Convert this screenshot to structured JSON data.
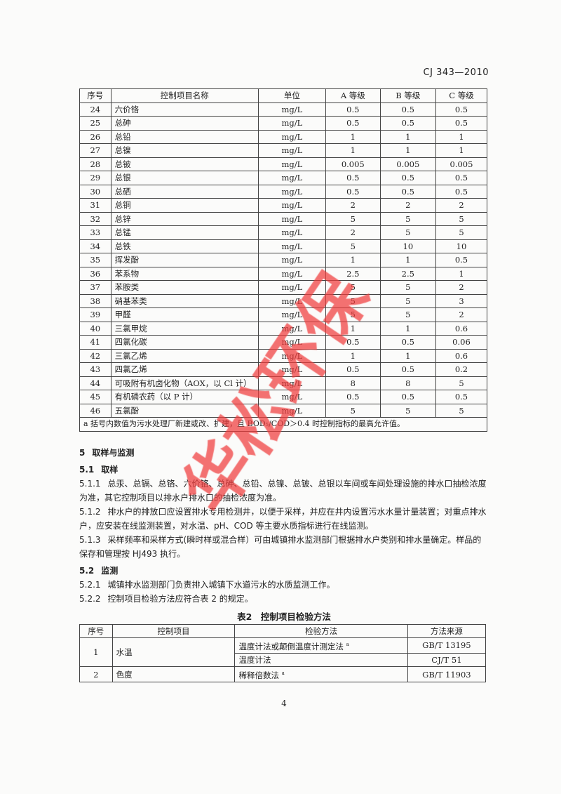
{
  "header": {
    "doc_code": "CJ 343—2010"
  },
  "table1": {
    "columns": [
      "序号",
      "控制项目名称",
      "单位",
      "A 等级",
      "B 等级",
      "C 等级"
    ],
    "rows": [
      [
        "24",
        "六价铬",
        "mg/L",
        "0.5",
        "0.5",
        "0.5"
      ],
      [
        "25",
        "总砷",
        "mg/L",
        "0.5",
        "0.5",
        "0.5"
      ],
      [
        "26",
        "总铅",
        "mg/L",
        "1",
        "1",
        "1"
      ],
      [
        "27",
        "总镍",
        "mg/L",
        "1",
        "1",
        "1"
      ],
      [
        "28",
        "总铍",
        "mg/L",
        "0.005",
        "0.005",
        "0.005"
      ],
      [
        "29",
        "总银",
        "mg/L",
        "0.5",
        "0.5",
        "0.5"
      ],
      [
        "30",
        "总硒",
        "mg/L",
        "0.5",
        "0.5",
        "0.5"
      ],
      [
        "31",
        "总铜",
        "mg/L",
        "2",
        "2",
        "2"
      ],
      [
        "32",
        "总锌",
        "mg/L",
        "5",
        "5",
        "5"
      ],
      [
        "33",
        "总锰",
        "mg/L",
        "2",
        "5",
        "5"
      ],
      [
        "34",
        "总铁",
        "mg/L",
        "5",
        "10",
        "10"
      ],
      [
        "35",
        "挥发酚",
        "mg/L",
        "1",
        "1",
        "0.5"
      ],
      [
        "36",
        "苯系物",
        "mg/L",
        "2.5",
        "2.5",
        "1"
      ],
      [
        "37",
        "苯胺类",
        "mg/L",
        "5",
        "5",
        "2"
      ],
      [
        "38",
        "硝基苯类",
        "mg/L",
        "5",
        "5",
        "3"
      ],
      [
        "39",
        "甲醛",
        "mg/L",
        "5",
        "5",
        "2"
      ],
      [
        "40",
        "三氯甲烷",
        "mg/L",
        "1",
        "1",
        "0.6"
      ],
      [
        "41",
        "四氯化碳",
        "mg/L",
        "0.5",
        "0.5",
        "0.06"
      ],
      [
        "42",
        "三氯乙烯",
        "mg/L",
        "1",
        "1",
        "0.6"
      ],
      [
        "43",
        "四氯乙烯",
        "mg/L",
        "0.5",
        "0.5",
        "0.2"
      ],
      [
        "44",
        "可吸附有机卤化物（AOX，以 Cl 计）",
        "mg/L",
        "8",
        "8",
        "5"
      ],
      [
        "45",
        "有机磷农药（以 P 计）",
        "mg/L",
        "0.5",
        "0.5",
        "0.5"
      ],
      [
        "46",
        "五氯酚",
        "mg/L",
        "5",
        "5",
        "5"
      ]
    ],
    "footnote": "a 括号内数值为污水处理厂新建或改、扩建，且 BOD₅/COD＞0.4 时控制指标的最高允许值。"
  },
  "sections": [
    {
      "num": "5",
      "text": "取样与监测",
      "heading": true
    },
    {
      "num": "5.1",
      "text": "取样",
      "heading": true
    },
    {
      "num": "5.1.1",
      "text": "总汞、总镉、总铬、六价铬、总砷、总铅、总镍、总铍、总银以车间或车间处理设施的排水口抽检浓度为准，其它控制项目以排水户排水口的抽检浓度为准。"
    },
    {
      "num": "5.1.2",
      "text": "排水户的排放口应设置排水专用检测井，以便于采样，并应在井内设置污水水量计量装置；对重点排水户，应安装在线监测装置，对水温、pH、COD 等主要水质指标进行在线监测。"
    },
    {
      "num": "5.1.3",
      "text": "采样频率和采样方式(瞬时样或混合样）可由城镇排水监测部门根据排水户类别和排水量确定。样品的保存和管理按 HJ493 执行。"
    },
    {
      "num": "5.2",
      "text": "监测",
      "heading": true
    },
    {
      "num": "5.2.1",
      "text": "城镇排水监测部门负责排入城镇下水道污水的水质监测工作。"
    },
    {
      "num": "5.2.2",
      "text": "控制项目检验方法应符合表 2 的规定。"
    }
  ],
  "table2": {
    "caption": "表2　控制项目检验方法",
    "columns": [
      "序号",
      "控制项目",
      "检验方法",
      "方法来源"
    ],
    "rows": [
      {
        "no": "1",
        "item": "水温",
        "methods": [
          [
            "温度计法或颠倒温度计测定法",
            "a",
            "GB/T 13195"
          ],
          [
            "温度计法",
            "",
            "CJ/T 51"
          ]
        ]
      },
      {
        "no": "2",
        "item": "色度",
        "methods": [
          [
            "稀释倍数法",
            "a",
            "GB/T 11903"
          ]
        ]
      }
    ]
  },
  "page_number": "4",
  "watermark": {
    "text": "华松环保",
    "color": "#f03c3c"
  }
}
